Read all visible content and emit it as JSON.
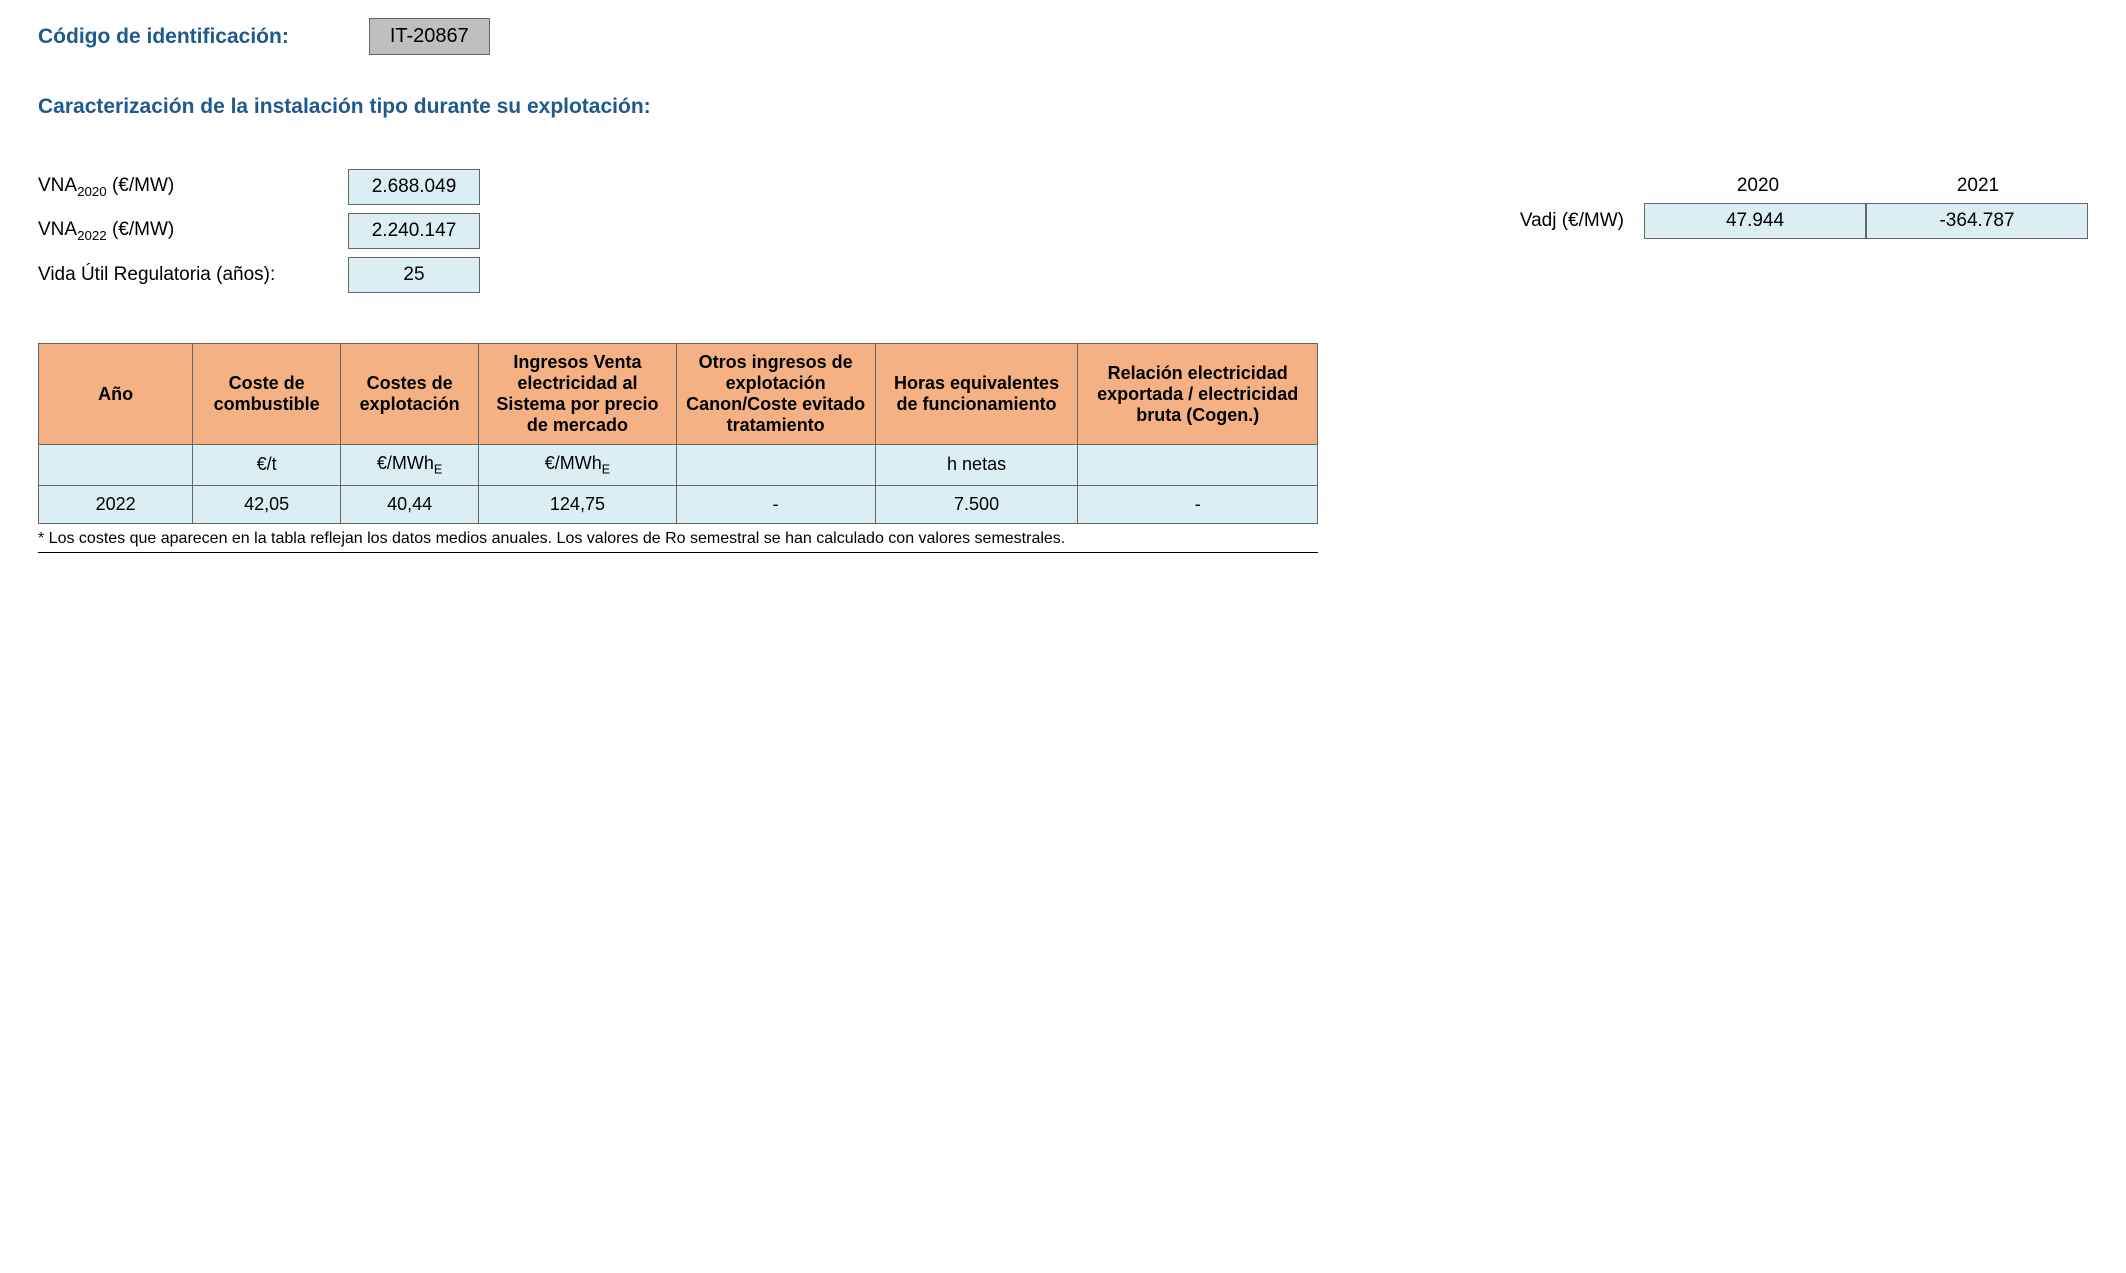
{
  "header": {
    "label": "Código de identificación:",
    "code": "IT-20867"
  },
  "section_title": "Caracterización de la instalación tipo durante su explotación:",
  "params": {
    "vna2020_label_pre": "VNA",
    "vna2020_label_sub": "2020",
    "vna2020_label_post": " (€/MW)",
    "vna2020_value": "2.688.049",
    "vna2022_label_pre": "VNA",
    "vna2022_label_sub": "2022",
    "vna2022_label_post": " (€/MW)",
    "vna2022_value": "2.240.147",
    "vida_label": "Vida Útil Regulatoria (años):",
    "vida_value": "25"
  },
  "vadj": {
    "year1": "2020",
    "year2": "2021",
    "label": "Vadj (€/MW)",
    "value1": "47.944",
    "value2": "-364.787"
  },
  "table": {
    "headers": {
      "ano": "Año",
      "combustible": "Coste de combustible",
      "explotacion": "Costes de explotación",
      "ingresos": "Ingresos Venta electricidad al Sistema por precio de mercado",
      "otros": "Otros ingresos de explotación Canon/Coste evitado tratamiento",
      "horas": "Horas equivalentes de funcionamiento",
      "relacion": "Relación electricidad exportada / electricidad bruta (Cogen.)"
    },
    "units": {
      "ano": "",
      "combustible": "€/t",
      "explotacion_pre": "€/MWh",
      "explotacion_sub": "E",
      "ingresos_pre": "€/MWh",
      "ingresos_sub": "E",
      "otros": "",
      "horas": "h netas",
      "relacion": ""
    },
    "row": {
      "ano": "2022",
      "combustible": "42,05",
      "explotacion": "40,44",
      "ingresos": "124,75",
      "otros": "-",
      "horas": "7.500",
      "relacion": "-"
    }
  },
  "footnote": "* Los costes que aparecen en la tabla reflejan los datos medios anuales. Los valores de Ro semestral se han calculado con valores semestrales.",
  "colors": {
    "header_bg": "#f4b183",
    "cell_bg": "#daeef3",
    "code_bg": "#bfbfbf",
    "blue_text": "#1f5a8f",
    "border": "#666666"
  }
}
